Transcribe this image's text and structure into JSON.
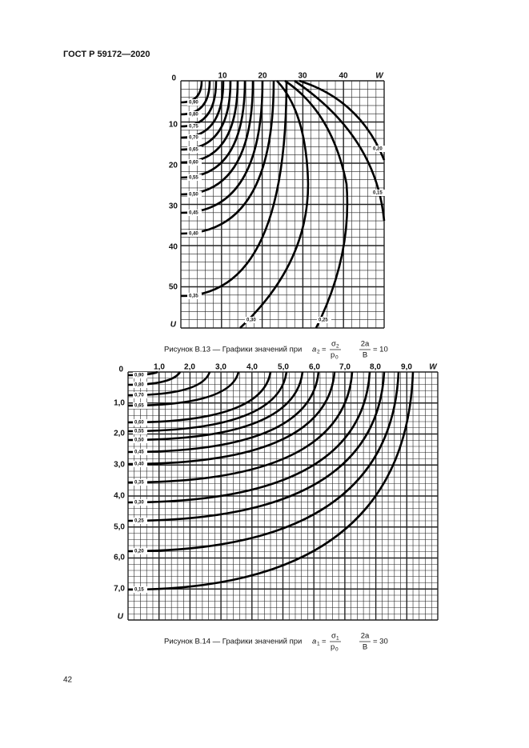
{
  "header": {
    "title": "ГОСТ Р 59172—2020"
  },
  "figures": [
    {
      "origin": "0",
      "x_ticks": [
        "10",
        "20",
        "30",
        "40"
      ],
      "x_axis": "W",
      "y_ticks": [
        "10",
        "20",
        "30",
        "40",
        "50"
      ],
      "y_axis": "U",
      "curve_labels": [
        "0,90",
        "0,80",
        "0,75",
        "0,70",
        "0,65",
        "0,60",
        "0,55",
        "0,50",
        "0,45",
        "0,40",
        "0,35",
        "0,30",
        "0,25",
        "0,20",
        "0,15"
      ],
      "caption": {
        "text": "Рисунок В.13 — Графики значений при",
        "symbol": "a",
        "symbol_index": "2",
        "equals": "=",
        "numerator": "σ",
        "numerator_index": "2",
        "denominator": "p",
        "denominator_index": "0",
        "ratio_numerator": "2a",
        "ratio_denominator": "B",
        "ratio_value": "= 10"
      }
    },
    {
      "origin": "0",
      "x_ticks": [
        "1,0",
        "2,0",
        "3,0",
        "4,0",
        "5,0",
        "6,0",
        "7,0",
        "8,0",
        "9,0"
      ],
      "x_axis": "W",
      "y_ticks": [
        "1,0",
        "2,0",
        "3,0",
        "4,0",
        "5,0",
        "6,0",
        "7,0"
      ],
      "y_axis": "U",
      "curve_labels": [
        "0,90",
        "0,80",
        "0,70",
        "0,65",
        "0,60",
        "0,55",
        "0,50",
        "0,45",
        "0,40",
        "0,35",
        "0,30",
        "0,25",
        "0,20",
        "0,15"
      ],
      "caption": {
        "text": "Рисунок В.14 — Графики значений при",
        "symbol": "a",
        "symbol_index": "1",
        "equals": "=",
        "numerator": "σ",
        "numerator_index": "1",
        "denominator": "p",
        "denominator_index": "0",
        "ratio_numerator": "2a",
        "ratio_denominator": "B",
        "ratio_value": "= 30"
      }
    }
  ],
  "page_number": "42"
}
